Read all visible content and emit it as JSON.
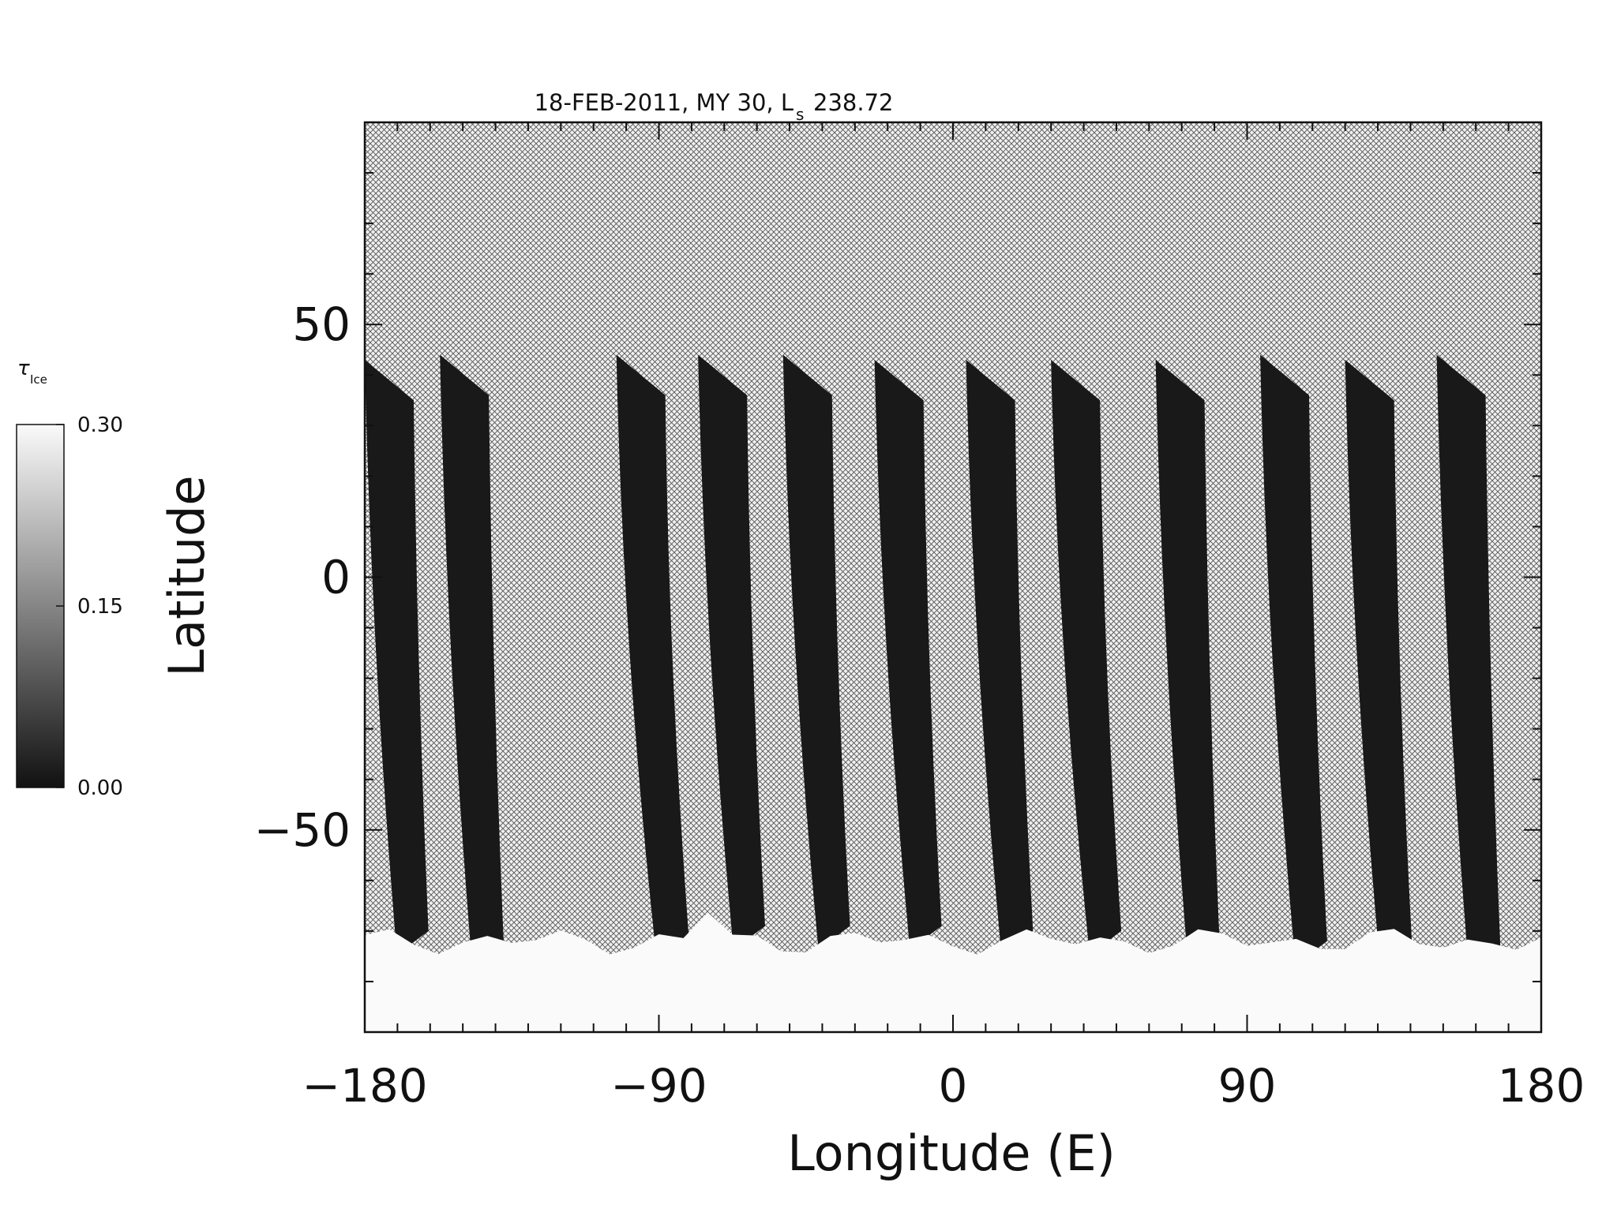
{
  "chart_data": {
    "type": "heatmap",
    "title": "18-FEB-2011, MY 30,  L",
    "title_sub": "s",
    "title_value": "238.72",
    "xlabel": "Longitude (E)",
    "ylabel": "Latitude",
    "xlim": [
      -180,
      180
    ],
    "ylim": [
      -90,
      90
    ],
    "xticks": [
      -180,
      -90,
      0,
      90,
      180
    ],
    "xtick_labels": [
      "−180",
      "−90",
      "0",
      "90",
      "180"
    ],
    "yticks": [
      50,
      0,
      -50
    ],
    "ytick_labels": [
      "50",
      "0",
      "−50"
    ],
    "grid": false,
    "no_data_pattern": "cross-hatch",
    "colorbar": {
      "label_symbol": "τ",
      "label_sub": "Ice",
      "range": [
        0.0,
        0.3
      ],
      "tick_labels": [
        "0.30",
        "0.15",
        "0.00"
      ],
      "tick_values": [
        0.3,
        0.15,
        0.0
      ],
      "colormap": "grayscale"
    },
    "observation_swaths": [
      {
        "lon_north": -180,
        "lat_top": 43,
        "lon_south": -175,
        "lat_bottom": -70
      },
      {
        "lon_north": -157,
        "lat_top": 44,
        "lon_south": -152,
        "lat_bottom": -72
      },
      {
        "lon_north": -103,
        "lat_top": 44,
        "lon_south": -95,
        "lat_bottom": -74
      },
      {
        "lon_north": -78,
        "lat_top": 44,
        "lon_south": -72,
        "lat_bottom": -69
      },
      {
        "lon_north": -52,
        "lat_top": 44,
        "lon_south": -46,
        "lat_bottom": -69
      },
      {
        "lon_north": -24,
        "lat_top": 43,
        "lon_south": -18,
        "lat_bottom": -69
      },
      {
        "lon_north": 4,
        "lat_top": 43,
        "lon_south": 10,
        "lat_bottom": -70
      },
      {
        "lon_north": 30,
        "lat_top": 43,
        "lon_south": 37,
        "lat_bottom": -70
      },
      {
        "lon_north": 62,
        "lat_top": 43,
        "lon_south": 67,
        "lat_bottom": -71
      },
      {
        "lon_north": 94,
        "lat_top": 44,
        "lon_south": 100,
        "lat_bottom": -72
      },
      {
        "lon_north": 120,
        "lat_top": 43,
        "lon_south": 126,
        "lat_bottom": -73
      },
      {
        "lon_north": 148,
        "lat_top": 44,
        "lon_south": 153,
        "lat_bottom": -73
      }
    ],
    "south_polar_cloud_lat_edge": -70,
    "south_polar_cloud_value": 0.3
  }
}
